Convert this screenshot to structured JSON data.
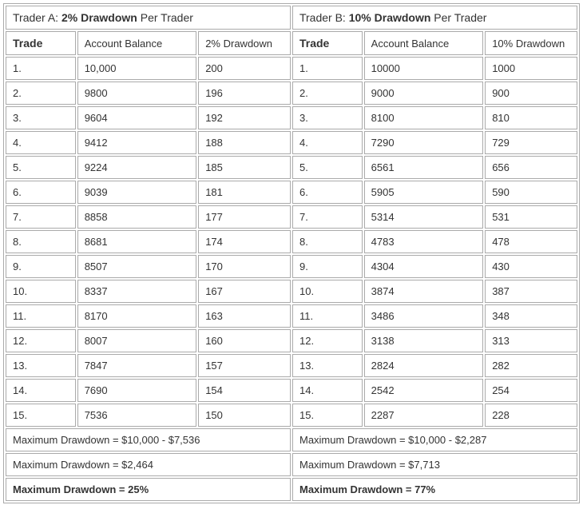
{
  "traderA": {
    "title_prefix": "Trader A: ",
    "title_bold": "2% Drawdown",
    "title_suffix": " Per Trader",
    "headers": {
      "trade": "Trade",
      "balance": "Account Balance",
      "drawdown": "2% Drawdown"
    },
    "rows": [
      {
        "n": "1.",
        "balance": "10,000",
        "dd": "200"
      },
      {
        "n": "2.",
        "balance": "9800",
        "dd": "196"
      },
      {
        "n": "3.",
        "balance": "9604",
        "dd": "192"
      },
      {
        "n": "4.",
        "balance": "9412",
        "dd": "188"
      },
      {
        "n": "5.",
        "balance": "9224",
        "dd": "185"
      },
      {
        "n": "6.",
        "balance": "9039",
        "dd": "181"
      },
      {
        "n": "7.",
        "balance": "8858",
        "dd": "177"
      },
      {
        "n": "8.",
        "balance": "8681",
        "dd": "174"
      },
      {
        "n": "9.",
        "balance": "8507",
        "dd": "170"
      },
      {
        "n": "10.",
        "balance": "8337",
        "dd": "167"
      },
      {
        "n": "11.",
        "balance": "8170",
        "dd": "163"
      },
      {
        "n": "12.",
        "balance": "8007",
        "dd": "160"
      },
      {
        "n": "13.",
        "balance": "7847",
        "dd": "157"
      },
      {
        "n": "14.",
        "balance": "7690",
        "dd": "154"
      },
      {
        "n": "15.",
        "balance": "7536",
        "dd": "150"
      }
    ],
    "footer1": "Maximum Drawdown = $10,000 - $7,536",
    "footer2": "Maximum Drawdown = $2,464",
    "footer3": "Maximum Drawdown = 25%"
  },
  "traderB": {
    "title_prefix": "Trader B: ",
    "title_bold": "10% Drawdown",
    "title_suffix": " Per Trader",
    "headers": {
      "trade": "Trade",
      "balance": "Account Balance",
      "drawdown": "10% Drawdown"
    },
    "rows": [
      {
        "n": "1.",
        "balance": "10000",
        "dd": "1000"
      },
      {
        "n": "2.",
        "balance": "9000",
        "dd": "900"
      },
      {
        "n": "3.",
        "balance": "8100",
        "dd": "810"
      },
      {
        "n": "4.",
        "balance": "7290",
        "dd": "729"
      },
      {
        "n": "5.",
        "balance": "6561",
        "dd": "656"
      },
      {
        "n": "6.",
        "balance": "5905",
        "dd": "590"
      },
      {
        "n": "7.",
        "balance": "5314",
        "dd": "531"
      },
      {
        "n": "8.",
        "balance": "4783",
        "dd": "478"
      },
      {
        "n": "9.",
        "balance": "4304",
        "dd": "430"
      },
      {
        "n": "10.",
        "balance": "3874",
        "dd": "387"
      },
      {
        "n": "11.",
        "balance": "3486",
        "dd": "348"
      },
      {
        "n": "12.",
        "balance": "3138",
        "dd": "313"
      },
      {
        "n": "13.",
        "balance": "2824",
        "dd": "282"
      },
      {
        "n": "14.",
        "balance": "2542",
        "dd": "254"
      },
      {
        "n": "15.",
        "balance": "2287",
        "dd": "228"
      }
    ],
    "footer1": "Maximum Drawdown = $10,000 - $2,287",
    "footer2": "Maximum Drawdown = $7,713",
    "footer3": "Maximum Drawdown = 77%"
  }
}
